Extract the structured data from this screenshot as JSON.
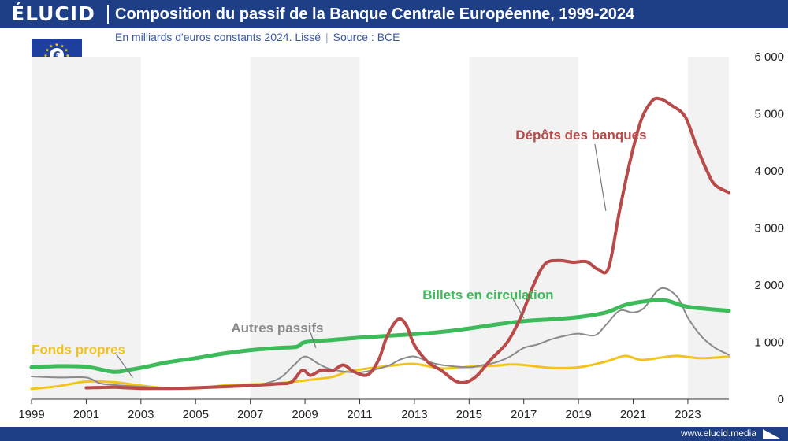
{
  "brand": "ÉLUCID",
  "title": "Composition du passif de la Banque Centrale Européenne, 1999-2024",
  "subtitle": "En milliards d'euros constants 2024. Lissé",
  "source": "Source : BCE",
  "footer_url": "www.elucid.media",
  "flag_symbol": "€",
  "colors": {
    "header": "#1e3f86",
    "depots": "#b94a4a",
    "billets": "#3dbb5a",
    "autres": "#8a8a8a",
    "fonds": "#f2c31b",
    "band": "#f2f2f2"
  },
  "chart_data": {
    "type": "line",
    "title": "Composition du passif de la Banque Centrale Européenne, 1999-2024",
    "ylabel": "En milliards d'euros constants 2024",
    "xlim": [
      1999,
      2024.5
    ],
    "ylim": [
      0,
      6000
    ],
    "x_ticks": [
      1999,
      2001,
      2003,
      2005,
      2007,
      2009,
      2011,
      2013,
      2015,
      2017,
      2019,
      2021,
      2023
    ],
    "y_ticks": [
      0,
      1000,
      2000,
      3000,
      4000,
      5000,
      6000
    ],
    "y_tick_labels": [
      "0",
      "1 000",
      "2 000",
      "3 000",
      "4 000",
      "5 000",
      "6 000"
    ],
    "shaded_bands": [
      [
        1999,
        2003
      ],
      [
        2007,
        2011
      ],
      [
        2015,
        2019
      ],
      [
        2023,
        2024.5
      ]
    ],
    "series": [
      {
        "name": "Dépôts des banques",
        "key": "depots",
        "label_pos": {
          "x": 2016.7,
          "y": 4550
        },
        "points": [
          [
            2001,
            200
          ],
          [
            2002,
            210
          ],
          [
            2002.5,
            200
          ],
          [
            2003,
            190
          ],
          [
            2004,
            190
          ],
          [
            2005,
            200
          ],
          [
            2006,
            220
          ],
          [
            2007,
            240
          ],
          [
            2008,
            270
          ],
          [
            2008.5,
            300
          ],
          [
            2008.9,
            510
          ],
          [
            2009.2,
            420
          ],
          [
            2009.6,
            510
          ],
          [
            2010,
            500
          ],
          [
            2010.4,
            600
          ],
          [
            2010.8,
            480
          ],
          [
            2011.3,
            430
          ],
          [
            2011.7,
            700
          ],
          [
            2012,
            1100
          ],
          [
            2012.4,
            1400
          ],
          [
            2012.7,
            1300
          ],
          [
            2013,
            950
          ],
          [
            2013.5,
            650
          ],
          [
            2014,
            500
          ],
          [
            2014.5,
            320
          ],
          [
            2014.9,
            300
          ],
          [
            2015.3,
            420
          ],
          [
            2015.8,
            700
          ],
          [
            2016.4,
            1000
          ],
          [
            2016.9,
            1450
          ],
          [
            2017.4,
            2050
          ],
          [
            2017.8,
            2380
          ],
          [
            2018.3,
            2430
          ],
          [
            2018.8,
            2400
          ],
          [
            2019.3,
            2410
          ],
          [
            2019.7,
            2280
          ],
          [
            2020.1,
            2300
          ],
          [
            2020.5,
            3300
          ],
          [
            2020.9,
            4200
          ],
          [
            2021.3,
            4900
          ],
          [
            2021.7,
            5230
          ],
          [
            2022,
            5260
          ],
          [
            2022.4,
            5150
          ],
          [
            2022.9,
            4950
          ],
          [
            2023.3,
            4450
          ],
          [
            2023.7,
            4000
          ],
          [
            2024,
            3750
          ],
          [
            2024.5,
            3620
          ]
        ]
      },
      {
        "name": "Billets en circulation",
        "key": "billets",
        "label_pos": {
          "x": 2013.3,
          "y": 1750
        },
        "points": [
          [
            1999,
            560
          ],
          [
            2000,
            580
          ],
          [
            2001,
            570
          ],
          [
            2002,
            480
          ],
          [
            2002.5,
            510
          ],
          [
            2003,
            550
          ],
          [
            2004,
            650
          ],
          [
            2005,
            720
          ],
          [
            2006,
            800
          ],
          [
            2007,
            860
          ],
          [
            2008,
            900
          ],
          [
            2008.7,
            920
          ],
          [
            2009,
            1000
          ],
          [
            2010,
            1040
          ],
          [
            2011,
            1080
          ],
          [
            2012,
            1110
          ],
          [
            2013,
            1140
          ],
          [
            2014,
            1180
          ],
          [
            2015,
            1240
          ],
          [
            2016,
            1310
          ],
          [
            2017,
            1370
          ],
          [
            2018,
            1400
          ],
          [
            2019,
            1440
          ],
          [
            2020,
            1520
          ],
          [
            2020.7,
            1650
          ],
          [
            2021.5,
            1720
          ],
          [
            2022.2,
            1730
          ],
          [
            2023,
            1620
          ],
          [
            2024.5,
            1550
          ]
        ]
      },
      {
        "name": "Autres passifs",
        "key": "autres",
        "label_pos": {
          "x": 2006.3,
          "y": 1170
        },
        "points": [
          [
            1999,
            400
          ],
          [
            2000,
            380
          ],
          [
            2001,
            380
          ],
          [
            2001.5,
            280
          ],
          [
            2002,
            250
          ],
          [
            2003,
            220
          ],
          [
            2004,
            200
          ],
          [
            2005,
            210
          ],
          [
            2006,
            220
          ],
          [
            2007,
            230
          ],
          [
            2008,
            350
          ],
          [
            2008.6,
            600
          ],
          [
            2009,
            750
          ],
          [
            2009.5,
            620
          ],
          [
            2010,
            520
          ],
          [
            2011,
            470
          ],
          [
            2012,
            580
          ],
          [
            2012.5,
            700
          ],
          [
            2013,
            750
          ],
          [
            2013.5,
            660
          ],
          [
            2014,
            600
          ],
          [
            2015,
            560
          ],
          [
            2015.5,
            600
          ],
          [
            2016,
            650
          ],
          [
            2016.5,
            750
          ],
          [
            2017,
            900
          ],
          [
            2017.5,
            960
          ],
          [
            2018,
            1050
          ],
          [
            2018.5,
            1110
          ],
          [
            2019,
            1150
          ],
          [
            2019.6,
            1120
          ],
          [
            2020,
            1300
          ],
          [
            2020.5,
            1550
          ],
          [
            2021,
            1520
          ],
          [
            2021.4,
            1600
          ],
          [
            2022,
            1940
          ],
          [
            2022.6,
            1800
          ],
          [
            2023,
            1430
          ],
          [
            2023.5,
            1100
          ],
          [
            2024,
            900
          ],
          [
            2024.5,
            780
          ]
        ]
      },
      {
        "name": "Fonds propres",
        "key": "fonds",
        "label_pos": {
          "x": 1999,
          "y": 790
        },
        "points": [
          [
            1999,
            180
          ],
          [
            2000,
            230
          ],
          [
            2001,
            310
          ],
          [
            2002,
            300
          ],
          [
            2003,
            240
          ],
          [
            2004,
            190
          ],
          [
            2005,
            190
          ],
          [
            2006,
            240
          ],
          [
            2007,
            260
          ],
          [
            2008,
            280
          ],
          [
            2009,
            330
          ],
          [
            2010,
            390
          ],
          [
            2010.5,
            480
          ],
          [
            2011,
            520
          ],
          [
            2012,
            580
          ],
          [
            2013,
            620
          ],
          [
            2014,
            540
          ],
          [
            2015,
            570
          ],
          [
            2016,
            590
          ],
          [
            2016.5,
            610
          ],
          [
            2017,
            600
          ],
          [
            2018,
            550
          ],
          [
            2019,
            560
          ],
          [
            2020,
            660
          ],
          [
            2020.7,
            760
          ],
          [
            2021.3,
            690
          ],
          [
            2022,
            730
          ],
          [
            2022.6,
            760
          ],
          [
            2023.5,
            720
          ],
          [
            2024.5,
            750
          ]
        ]
      }
    ],
    "label_leaders": {
      "depots": [
        [
          2019.6,
          4470
        ],
        [
          2020,
          3300
        ]
      ],
      "billets": [
        [
          2016.6,
          1760
        ],
        [
          2017,
          1420
        ]
      ],
      "autres": [
        [
          2009.2,
          1170
        ],
        [
          2009.4,
          900
        ]
      ],
      "fonds": [
        [
          2002.1,
          790
        ],
        [
          2002.7,
          380
        ]
      ]
    }
  }
}
